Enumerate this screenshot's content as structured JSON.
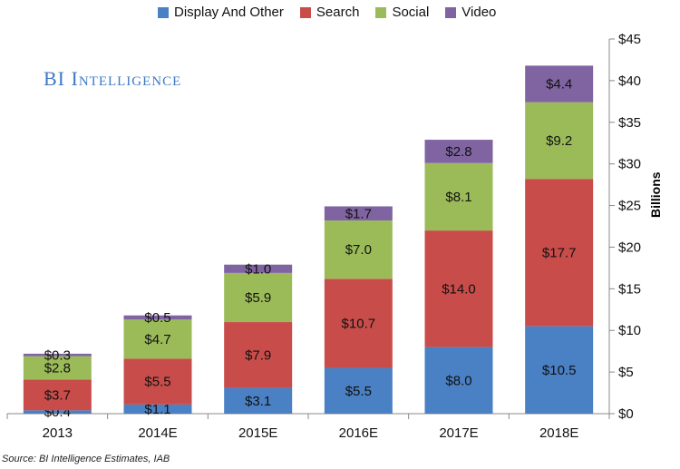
{
  "chart_data": {
    "type": "bar",
    "stacked": true,
    "categories": [
      "2013",
      "2014E",
      "2015E",
      "2016E",
      "2017E",
      "2018E"
    ],
    "series": [
      {
        "name": "Display And Other",
        "color": "#4a80c4",
        "values": [
          0.4,
          1.1,
          3.1,
          5.5,
          8.0,
          10.5
        ],
        "labels": [
          "$0.4",
          "$1.1",
          "$3.1",
          "$5.5",
          "$8.0",
          "$10.5"
        ]
      },
      {
        "name": "Search",
        "color": "#c84d4a",
        "values": [
          3.7,
          5.5,
          7.9,
          10.7,
          14.0,
          17.7
        ],
        "labels": [
          "$3.7",
          "$5.5",
          "$7.9",
          "$10.7",
          "$14.0",
          "$17.7"
        ]
      },
      {
        "name": "Social",
        "color": "#9bbb59",
        "values": [
          2.8,
          4.7,
          5.9,
          7.0,
          8.1,
          9.2
        ],
        "labels": [
          "$2.8",
          "$4.7",
          "$5.9",
          "$7.0",
          "$8.1",
          "$9.2"
        ]
      },
      {
        "name": "Video",
        "color": "#8064a2",
        "values": [
          0.3,
          0.5,
          1.0,
          1.7,
          2.8,
          4.4
        ],
        "labels": [
          "$0.3",
          "$0.5",
          "$1.0",
          "$1.7",
          "$2.8",
          "$4.4"
        ]
      }
    ],
    "ylabel": "Billions",
    "ylim": [
      0,
      45
    ],
    "yticks": [
      0,
      5,
      10,
      15,
      20,
      25,
      30,
      35,
      40,
      45
    ],
    "ytick_labels": [
      "$0",
      "$5",
      "$10",
      "$15",
      "$20",
      "$25",
      "$30",
      "$35",
      "$40",
      "$45"
    ],
    "y_axis_side": "right",
    "grid": false,
    "legend_position": "top"
  },
  "brand": "BI Intelligence",
  "source": "Source: BI Intelligence Estimates, IAB"
}
